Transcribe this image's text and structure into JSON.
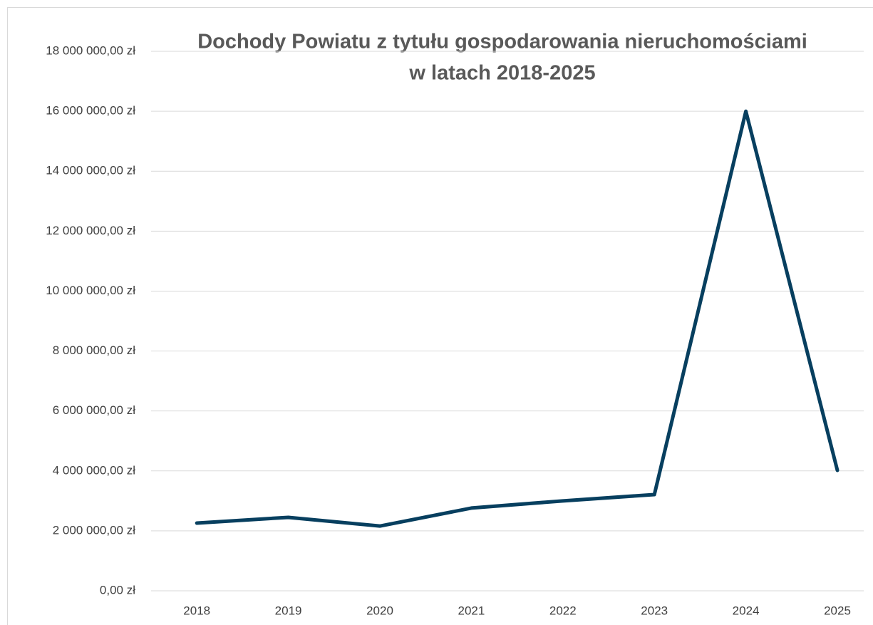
{
  "chart_data": {
    "type": "line",
    "title": [
      "Dochody Powiatu z tytułu gospodarowania nieruchomościami",
      "w latach 2018-2025"
    ],
    "categories": [
      "2018",
      "2019",
      "2020",
      "2021",
      "2022",
      "2023",
      "2024",
      "2025"
    ],
    "series": [
      {
        "name": "Dochody",
        "color": "#073f5f",
        "values": [
          2260000,
          2450000,
          2160000,
          2760000,
          3000000,
          3210000,
          16000000,
          4020000
        ]
      }
    ],
    "ylim": [
      0,
      18000000
    ],
    "yticks": [
      {
        "value": 0,
        "label": "0,00 zł"
      },
      {
        "value": 2000000,
        "label": "2 000 000,00 zł"
      },
      {
        "value": 4000000,
        "label": "4 000 000,00 zł"
      },
      {
        "value": 6000000,
        "label": "6 000 000,00 zł"
      },
      {
        "value": 8000000,
        "label": "8 000 000,00 zł"
      },
      {
        "value": 10000000,
        "label": "10 000 000,00 zł"
      },
      {
        "value": 12000000,
        "label": "12 000 000,00 zł"
      },
      {
        "value": 14000000,
        "label": "14 000 000,00 zł"
      },
      {
        "value": 16000000,
        "label": "16 000 000,00 zł"
      },
      {
        "value": 18000000,
        "label": "18 000 000,00 zł"
      }
    ],
    "grid": true
  }
}
